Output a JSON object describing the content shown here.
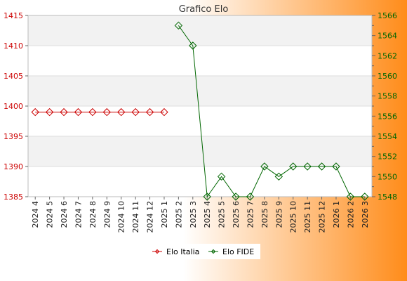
{
  "chart_data": {
    "type": "line",
    "title": "Grafico Elo",
    "categories": [
      "2024 4",
      "2024 5",
      "2024 6",
      "2024 7",
      "2024 8",
      "2024 9",
      "2024 10",
      "2024 11",
      "2024 12",
      "2025 1",
      "2025 2",
      "2025 3",
      "2025 4",
      "2025 5",
      "2025 6",
      "2025 7",
      "2025 8",
      "2025 9",
      "2025 10",
      "2025 11",
      "2025 12",
      "2026 1",
      "2026 2",
      "2026 3"
    ],
    "y_left": {
      "min": 1385,
      "max": 1415,
      "ticks": [
        1385,
        1390,
        1395,
        1400,
        1405,
        1410,
        1415
      ],
      "color": "#cc0000"
    },
    "y_right": {
      "min": 1548,
      "max": 1566,
      "ticks": [
        1548,
        1550,
        1552,
        1554,
        1556,
        1558,
        1560,
        1562,
        1564,
        1566
      ],
      "color": "#006600"
    },
    "series": [
      {
        "name": "Elo Italia",
        "axis": "left",
        "color": "#cc0000",
        "values": [
          1399,
          1399,
          1399,
          1399,
          1399,
          1399,
          1399,
          1399,
          1399,
          1399,
          null,
          null,
          null,
          null,
          null,
          null,
          null,
          null,
          null,
          null,
          null,
          null,
          null,
          null
        ]
      },
      {
        "name": "Elo FIDE",
        "axis": "right",
        "color": "#006600",
        "values": [
          null,
          null,
          null,
          null,
          null,
          null,
          null,
          null,
          null,
          null,
          1565,
          1563,
          1548,
          1550,
          1548,
          1548,
          1551,
          1550,
          1551,
          1551,
          1551,
          1551,
          1548,
          1548
        ]
      }
    ],
    "grid": true,
    "legend_position": "bottom-center",
    "colors": {
      "background_gradient_end": "#ff8c1a",
      "band": "#f2f2f2"
    }
  }
}
